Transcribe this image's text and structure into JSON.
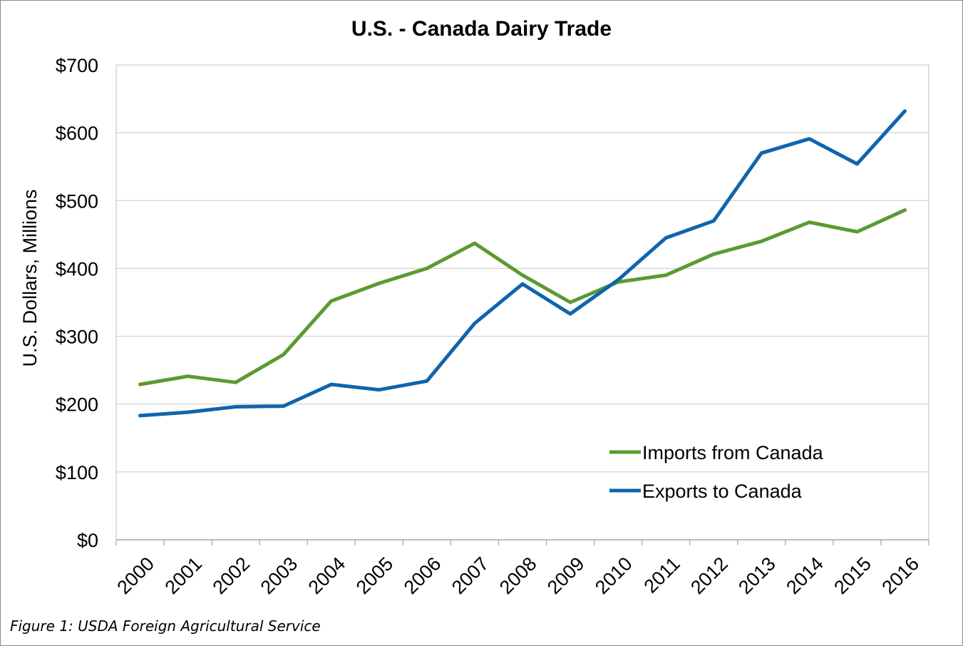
{
  "caption": "Figure 1: USDA Foreign Agricultural Service",
  "chart_data": {
    "type": "line",
    "title": "U.S. - Canada Dairy Trade",
    "xlabel": "",
    "ylabel": "U.S. Dollars, Millions",
    "categories": [
      "2000",
      "2001",
      "2002",
      "2003",
      "2004",
      "2005",
      "2006",
      "2007",
      "2008",
      "2009",
      "2010",
      "2011",
      "2012",
      "2013",
      "2014",
      "2015",
      "2016"
    ],
    "ylim": [
      0,
      700
    ],
    "yticks": [
      0,
      100,
      200,
      300,
      400,
      500,
      600,
      700
    ],
    "ytick_labels": [
      "$0",
      "$100",
      "$200",
      "$300",
      "$400",
      "$500",
      "$600",
      "$700"
    ],
    "grid": true,
    "legend_position": "bottom-right",
    "series": [
      {
        "name": "Imports from Canada",
        "color": "#5b9a32",
        "values": [
          229,
          241,
          232,
          273,
          352,
          378,
          400,
          437,
          390,
          350,
          380,
          390,
          421,
          440,
          468,
          454,
          486
        ]
      },
      {
        "name": "Exports to Canada",
        "color": "#0f64ad",
        "values": [
          183,
          188,
          196,
          197,
          229,
          221,
          234,
          319,
          377,
          333,
          383,
          445,
          470,
          570,
          591,
          554,
          632
        ]
      }
    ]
  }
}
